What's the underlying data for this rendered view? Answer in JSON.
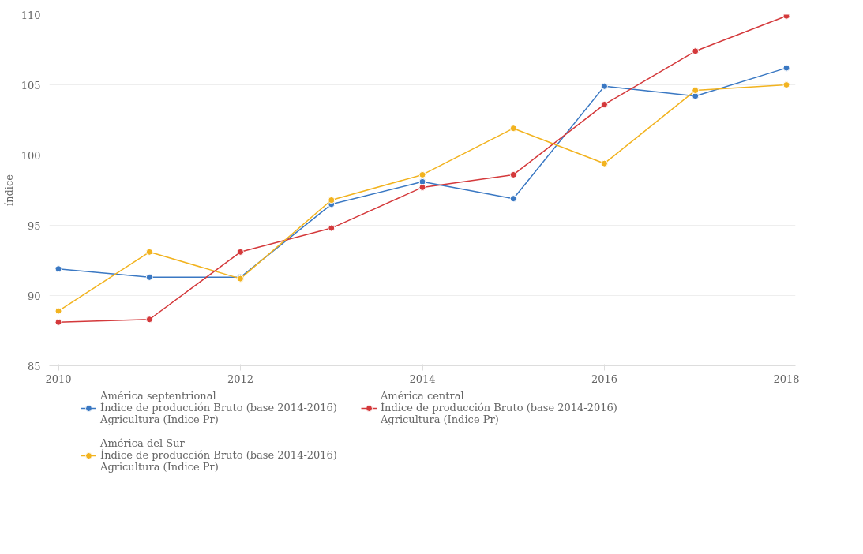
{
  "chart_data": {
    "type": "line",
    "ylabel": "índice",
    "x": [
      2010,
      2011,
      2012,
      2013,
      2014,
      2015,
      2016,
      2017,
      2018
    ],
    "series": [
      {
        "name": "América septentrional\nÍndice de producción Bruto (base 2014-2016)\nAgricultura (Indice Pr)",
        "color": "#3a78c3",
        "values": [
          91.9,
          91.3,
          91.3,
          96.5,
          98.1,
          96.9,
          104.9,
          104.2,
          106.2
        ]
      },
      {
        "name": "América central\nÍndice de producción Bruto (base 2014-2016)\nAgricultura (Indice Pr)",
        "color": "#d4393b",
        "values": [
          88.1,
          88.3,
          93.1,
          94.8,
          97.7,
          98.6,
          103.6,
          107.4,
          109.9
        ]
      },
      {
        "name": "América del Sur\nÍndice de producción Bruto (base 2014-2016)\nAgricultura (Indice Pr)",
        "color": "#f2b31f",
        "values": [
          88.9,
          93.1,
          91.2,
          96.8,
          98.6,
          101.9,
          99.4,
          104.6,
          105.0
        ]
      }
    ],
    "xlim": [
      2009.9,
      2018.1
    ],
    "xticks": [
      2010,
      2012,
      2014,
      2016,
      2018
    ],
    "ylim": [
      85,
      110
    ],
    "yticks": [
      85,
      90,
      95,
      100,
      105,
      110
    ],
    "grid": "y",
    "legend": "bottom",
    "marker": "circle",
    "line_style": "solid"
  }
}
